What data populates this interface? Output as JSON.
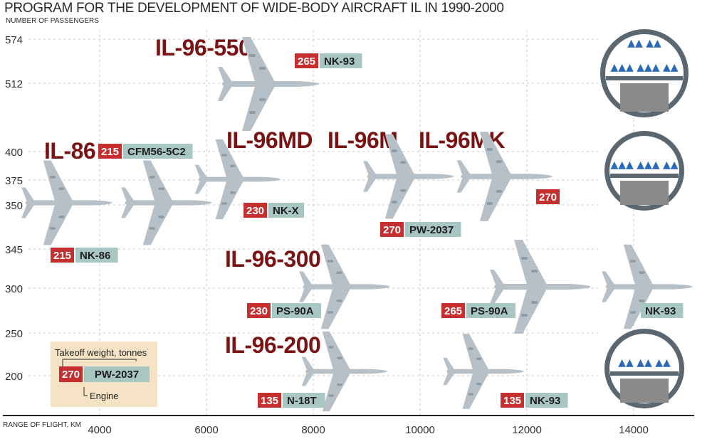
{
  "title": "PROGRAM FOR THE DEVELOPMENT OF WIDE-BODY AIRCRAFT IL IN 1990-2000",
  "chart_data": {
    "type": "scatter",
    "xlabel": "RANGE OF FLIGHT, KM",
    "ylabel": "NUMBER OF PASSENGERS",
    "x_ticks": [
      "4000",
      "6000",
      "8000",
      "10000",
      "12000",
      "14000"
    ],
    "y_ticks": [
      "574",
      "512",
      "400",
      "375",
      "350",
      "345",
      "300",
      "250",
      "200"
    ],
    "colors": {
      "weight_badge": "#c62f2f",
      "engine_badge": "#a9c7c2",
      "model_name": "#7a1414",
      "aircraft": "#b7c0c7",
      "grid": "#c9c9c9",
      "legend_bg": "#f6e2c4"
    },
    "aircraft": [
      {
        "model": "IL-86",
        "range_km": 3000,
        "passengers": 350,
        "weight": "215",
        "engine": "NK-86"
      },
      {
        "model": "IL-86",
        "range_km": 4700,
        "passengers": 350,
        "weight": "215",
        "engine": "CFM56-5C2"
      },
      {
        "model": "IL-96MD",
        "range_km": 7000,
        "passengers": 375,
        "weight": "230",
        "engine": "NK-X"
      },
      {
        "model": "IL-96-550",
        "range_km": 7000,
        "passengers": 512,
        "weight": "265",
        "engine": "NK-93"
      },
      {
        "model": "IL-96M",
        "range_km": 9700,
        "passengers": 375,
        "weight": "270",
        "engine": "PW-2037"
      },
      {
        "model": "IL-96MK",
        "range_km": 11500,
        "passengers": 375,
        "weight": "270",
        "engine": ""
      },
      {
        "model": "IL-96-300",
        "range_km": 8700,
        "passengers": 300,
        "weight": "230",
        "engine": "PS-90A"
      },
      {
        "model": "IL-96-300",
        "range_km": 12000,
        "passengers": 300,
        "weight": "265",
        "engine": "PS-90A"
      },
      {
        "model": "IL-96-300",
        "range_km": 14300,
        "passengers": 300,
        "weight": "",
        "engine": "NK-93"
      },
      {
        "model": "IL-96-200",
        "range_km": 8700,
        "passengers": 200,
        "weight": "135",
        "engine": "N-18T"
      },
      {
        "model": "IL-96-200",
        "range_km": 11000,
        "passengers": 200,
        "weight": "135",
        "engine": "NK-93"
      }
    ],
    "model_labels": [
      "IL-96-550",
      "IL-86",
      "IL-96MD",
      "IL-96M",
      "IL-96MK",
      "IL-96-300",
      "IL-96-200"
    ],
    "legend": {
      "weight_label": "Takeoff  weight, tonnes",
      "engine_label": "Engine",
      "weight": "270",
      "engine": "PW-2037"
    },
    "cabins": [
      {
        "decks": 2,
        "rows": [
          "▲▲ ▲▲",
          "▲▲▲ ▲▲▲ ▲▲"
        ]
      },
      {
        "decks": 1,
        "rows": [
          "▲▲▲ ▲▲▲ ▲▲"
        ]
      },
      {
        "decks": 1,
        "rows": [
          "▲▲ ▲▲ ▲▲"
        ]
      }
    ],
    "grid": true
  }
}
